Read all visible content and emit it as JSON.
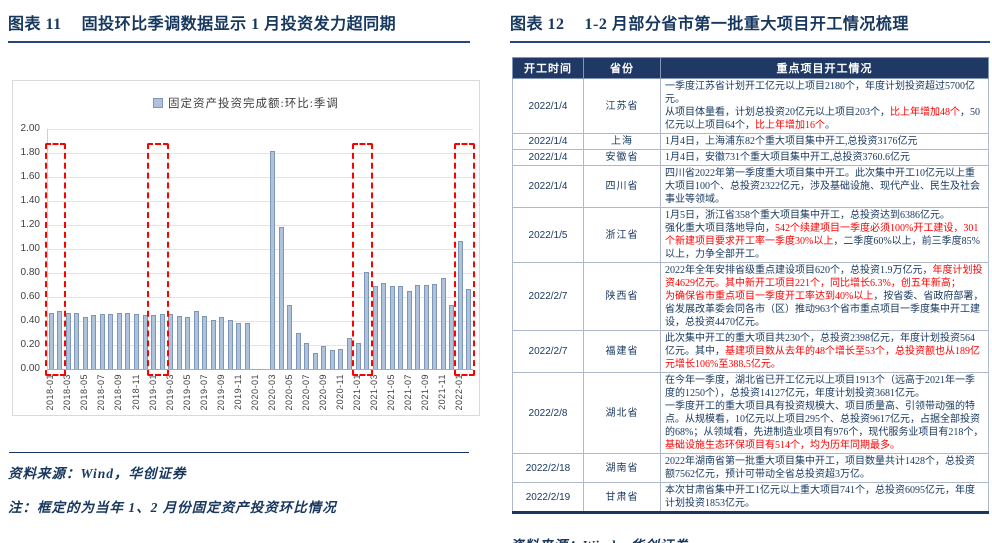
{
  "figure11": {
    "tag": "图表 11",
    "title": "固投环比季调数据显示 1 月投资发力超同期",
    "source": "资料来源：Wind，华创证券",
    "note": "注：框定的为当年 1、2 月份固定资产投资环比情况"
  },
  "chart_data": {
    "type": "bar",
    "title": "",
    "legend": "固定资产投资完成额:环比:季调",
    "legend_position": "top",
    "xlabel": "",
    "ylabel": "",
    "ylim": [
      0,
      2.0
    ],
    "ytick_step": 0.2,
    "xtick_every": 2,
    "grid": true,
    "bar_color": "#AEC2DC",
    "bar_border": "#7E96B8",
    "highlight_color": "#FF0000",
    "categories": [
      "2018-01",
      "2018-02",
      "2018-03",
      "2018-04",
      "2018-05",
      "2018-06",
      "2018-07",
      "2018-08",
      "2018-09",
      "2018-10",
      "2018-11",
      "2018-12",
      "2019-01",
      "2019-02",
      "2019-03",
      "2019-04",
      "2019-05",
      "2019-06",
      "2019-07",
      "2019-08",
      "2019-09",
      "2019-10",
      "2019-11",
      "2019-12",
      "2020-01",
      "2020-02",
      "2020-03",
      "2020-04",
      "2020-05",
      "2020-06",
      "2020-07",
      "2020-08",
      "2020-09",
      "2020-10",
      "2020-11",
      "2020-12",
      "2021-01",
      "2021-02",
      "2021-03",
      "2021-04",
      "2021-05",
      "2021-06",
      "2021-07",
      "2021-08",
      "2021-09",
      "2021-10",
      "2021-11",
      "2021-12",
      "2022-01",
      "2022-02"
    ],
    "values": [
      0.47,
      0.48,
      0.47,
      0.47,
      0.43,
      0.45,
      0.46,
      0.46,
      0.47,
      0.47,
      0.46,
      0.45,
      0.45,
      0.46,
      0.46,
      0.44,
      0.43,
      0.48,
      0.44,
      0.41,
      0.43,
      0.41,
      0.38,
      0.38,
      0,
      0,
      1.82,
      1.18,
      0.53,
      0.3,
      0.22,
      0.13,
      0.19,
      0.16,
      0.17,
      0.26,
      0.22,
      0.81,
      0.69,
      0.72,
      0.69,
      0.69,
      0.65,
      0.7,
      0.7,
      0.71,
      0.76,
      0.53,
      1.07,
      0.67
    ],
    "highlight_boxes": [
      {
        "from": "2018-01",
        "to": "2018-02"
      },
      {
        "from": "2019-01",
        "to": "2019-02"
      },
      {
        "from": "2021-01",
        "to": "2021-02"
      },
      {
        "from": "2022-01",
        "to": "2022-02"
      }
    ]
  },
  "figure12": {
    "tag": "图表 12",
    "title": "1-2 月部分省市第一批重大项目开工情况梳理",
    "source": "资料来源：Wind，华创证券",
    "table": {
      "headers": [
        "开工时间",
        "省份",
        "重点项目开工情况"
      ],
      "rows": [
        {
          "date": "2022/1/4",
          "province": "江苏省",
          "segments": [
            {
              "t": "一季度江苏省计划开工亿元以上项目2180个，年度计划投资超过5700亿元。\n从项目体量看，计划总投资20亿元以上项目203个，"
            },
            {
              "t": "比上年增加48个",
              "red": true
            },
            {
              "t": "，50亿元以上项目64个，"
            },
            {
              "t": "比上年增加16个",
              "red": true
            },
            {
              "t": "。"
            }
          ]
        },
        {
          "date": "2022/1/4",
          "province": "上海",
          "segments": [
            {
              "t": "1月4日，上海浦东82个重大项目集中开工,总投资3176亿元"
            }
          ]
        },
        {
          "date": "2022/1/4",
          "province": "安徽省",
          "segments": [
            {
              "t": "1月4日，安徽731个重大项目集中开工,总投资3760.6亿元"
            }
          ]
        },
        {
          "date": "2022/1/4",
          "province": "四川省",
          "segments": [
            {
              "t": "四川省2022年第一季度重大项目集中开工。此次集中开工10亿元以上重大项目100个、总投资2322亿元，涉及基础设施、现代产业、民生及社会事业等领域。"
            }
          ]
        },
        {
          "date": "2022/1/5",
          "province": "浙江省",
          "segments": [
            {
              "t": "1月5日，浙江省358个重大项目集中开工，总投资达到6386亿元。\n强化重大项目落地导向，"
            },
            {
              "t": "542个续建项目一季度必须100%开工建设，301个新建项目要求开工率一季度30%以上",
              "red": true
            },
            {
              "t": "，二季度60%以上，前三季度85%以上，力争全部开工。"
            }
          ]
        },
        {
          "date": "2022/2/7",
          "province": "陕西省",
          "segments": [
            {
              "t": "2022年全年安排省级重点建设项目620个，总投资1.9万亿元，"
            },
            {
              "t": "年度计划投资4629亿元。其中新开工项目221个，同比增长6.3%，创五年新高；\n为确保省市重点项目一季度开工率达到40%以上",
              "red": true
            },
            {
              "t": "，按省委、省政府部署，省发展改革委会同各市（区）推动963个省市重点项目一季度集中开工建设，总投资4470亿元。"
            }
          ]
        },
        {
          "date": "2022/2/7",
          "province": "福建省",
          "segments": [
            {
              "t": "此次集中开工的重大项目共230个，总投资2398亿元，年度计划投资564亿元。其中，"
            },
            {
              "t": "基建项目数从去年的48个增长至53个，总投资额也从189亿元增长106%至388.5亿元。",
              "red": true
            }
          ]
        },
        {
          "date": "2022/2/8",
          "province": "湖北省",
          "segments": [
            {
              "t": "在今年一季度，湖北省已开工亿元以上项目1913个（远高于2021年一季度的1250个），总投资14127亿元，年度计划投资3681亿元。\n一季度开工的重大项目具有投资规模大、项目质量高、引领带动强的特点。从规模看，10亿元以上项目295个、总投资9617亿元，占据全部投资的68%；从领域看，先进制造业项目有976个，现代服务业项目有218个，"
            },
            {
              "t": "基础设施生态环保项目有514个，均为历年同期最多。",
              "red": true
            }
          ]
        },
        {
          "date": "2022/2/18",
          "province": "湖南省",
          "segments": [
            {
              "t": "2022年湖南省第一批重大项目集中开工，项目数量共计1428个，总投资额7562亿元，预计可带动全省总投资超3万亿。"
            }
          ]
        },
        {
          "date": "2022/2/19",
          "province": "甘肃省",
          "segments": [
            {
              "t": "本次甘肃省集中开工1亿元以上重大项目741个，总投资6095亿元，年度计划投资1853亿元。"
            }
          ]
        }
      ]
    }
  }
}
